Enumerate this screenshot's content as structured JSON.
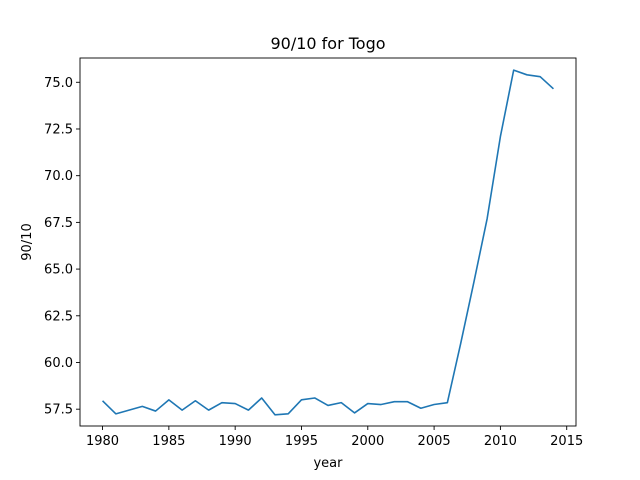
{
  "chart_data": {
    "type": "line",
    "title": "90/10 for Togo",
    "xlabel": "year",
    "ylabel": "90/10",
    "xlim": [
      1978.3,
      2015.7
    ],
    "ylim": [
      56.6,
      76.3
    ],
    "x_ticks": [
      1980,
      1985,
      1990,
      1995,
      2000,
      2005,
      2010,
      2015
    ],
    "y_ticks": [
      57.5,
      60.0,
      62.5,
      65.0,
      67.5,
      70.0,
      72.5,
      75.0
    ],
    "y_tick_labels": [
      "57.5",
      "60.0",
      "62.5",
      "65.0",
      "67.5",
      "70.0",
      "72.5",
      "75.0"
    ],
    "grid": false,
    "color": "#1f77b4",
    "series": [
      {
        "x": [
          1980,
          1981,
          1982,
          1983,
          1984,
          1985,
          1986,
          1987,
          1988,
          1989,
          1990,
          1991,
          1992,
          1993,
          1994,
          1995,
          1996,
          1997,
          1998,
          1999,
          2000,
          2001,
          2002,
          2003,
          2004,
          2005,
          2006,
          2007,
          2008,
          2009,
          2010,
          2011,
          2012,
          2013,
          2014
        ],
        "values": [
          57.95,
          57.25,
          57.45,
          57.65,
          57.4,
          58.0,
          57.45,
          57.95,
          57.45,
          57.85,
          57.8,
          57.45,
          58.1,
          57.2,
          57.25,
          58.0,
          58.1,
          57.7,
          57.85,
          57.3,
          57.8,
          57.75,
          57.9,
          57.9,
          57.55,
          57.75,
          57.85,
          61.0,
          64.3,
          67.7,
          72.1,
          75.65,
          75.4,
          75.3,
          74.65
        ]
      }
    ]
  }
}
